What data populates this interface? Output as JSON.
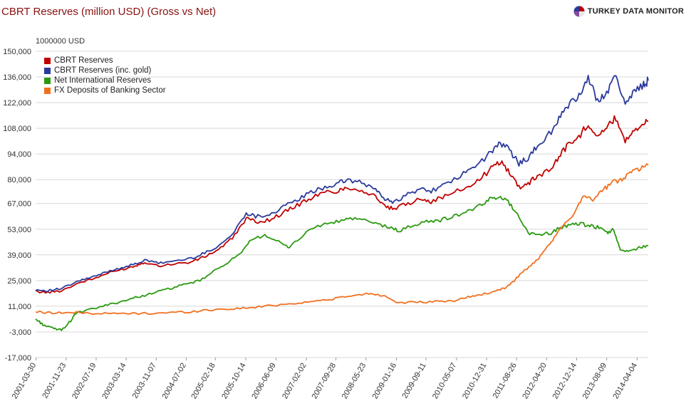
{
  "header": {
    "title": "CBRT Reserves (million USD) (Gross vs Net)",
    "brand": "TURKEY DATA MONITOR"
  },
  "colors": {
    "cbrt": "#c00000",
    "cbrt_gold": "#2a3a9a",
    "nir": "#2a9a10",
    "fx": "#f07020",
    "grid": "#d8d8d8",
    "title": "#8b1010"
  },
  "chart_data": {
    "type": "line",
    "title": "CBRT Reserves (million USD) (Gross vs Net)",
    "ylabel": "1000000 USD",
    "xlabel": "",
    "ylim": [
      -17000,
      150000
    ],
    "yticks": [
      150000,
      136000,
      122000,
      108000,
      94000,
      80000,
      67000,
      53000,
      39000,
      25000,
      11000,
      -3000,
      -17000
    ],
    "ytick_labels": [
      "150,000",
      "136,000",
      "122,000",
      "108,000",
      "94,000",
      "80,000",
      "67,000",
      "53,000",
      "39,000",
      "25,000",
      "11,000",
      "-3,000",
      "-17,000"
    ],
    "xlim": [
      2001.24,
      2014.5
    ],
    "xticks": [
      2001.25,
      2001.9,
      2002.55,
      2003.2,
      2003.85,
      2004.5,
      2005.13,
      2005.79,
      2006.44,
      2007.1,
      2007.74,
      2008.39,
      2009.05,
      2009.69,
      2010.35,
      2011.0,
      2011.65,
      2012.3,
      2012.95,
      2013.6,
      2014.26
    ],
    "xtick_labels": [
      "2001-03-30",
      "2001-11-23",
      "2002-07-19",
      "2003-03-14",
      "2003-11-07",
      "2004-07-02",
      "2005-02-18",
      "2005-10-14",
      "2006-06-09",
      "2007-02-02",
      "2007-09-28",
      "2008-05-23",
      "2009-01-16",
      "2009-09-11",
      "2010-05-07",
      "2010-12-31",
      "2011-08-26",
      "2012-04-20",
      "2012-12-14",
      "2013-08-09",
      "2014-04-04"
    ],
    "legend_position": "top-left",
    "series": [
      {
        "name": "CBRT Reserves",
        "color": "#c00000",
        "x": [
          2001.24,
          2001.5,
          2001.8,
          2002.2,
          2002.5,
          2002.8,
          2003.1,
          2003.4,
          2003.6,
          2003.9,
          2004.2,
          2004.6,
          2004.9,
          2005.2,
          2005.5,
          2005.8,
          2006.0,
          2006.3,
          2006.6,
          2006.9,
          2007.2,
          2007.5,
          2007.8,
          2008.0,
          2008.3,
          2008.6,
          2008.8,
          2009.0,
          2009.3,
          2009.6,
          2009.8,
          2010.1,
          2010.5,
          2010.8,
          2011.1,
          2011.3,
          2011.5,
          2011.7,
          2011.9,
          2012.1,
          2012.4,
          2012.6,
          2012.8,
          2013.0,
          2013.2,
          2013.4,
          2013.6,
          2013.8,
          2014.0,
          2014.2,
          2014.4,
          2014.5
        ],
        "y": [
          19000,
          18500,
          19500,
          24000,
          26000,
          29000,
          31000,
          33000,
          35000,
          33000,
          34000,
          35000,
          38000,
          42000,
          48000,
          59000,
          57000,
          58000,
          62000,
          66000,
          70000,
          73000,
          74000,
          76000,
          74000,
          71000,
          65000,
          64000,
          67000,
          70000,
          68000,
          71000,
          75000,
          79000,
          86000,
          90000,
          84000,
          76000,
          78000,
          82000,
          86000,
          94000,
          100000,
          103000,
          111000,
          104000,
          108000,
          114000,
          101000,
          108000,
          110000,
          112000
        ]
      },
      {
        "name": "CBRT Reserves (inc. gold)",
        "color": "#2a3a9a",
        "x": [
          2001.24,
          2001.5,
          2001.8,
          2002.2,
          2002.5,
          2002.8,
          2003.1,
          2003.4,
          2003.6,
          2003.9,
          2004.2,
          2004.6,
          2004.9,
          2005.2,
          2005.5,
          2005.8,
          2006.0,
          2006.3,
          2006.6,
          2006.9,
          2007.2,
          2007.5,
          2007.8,
          2008.0,
          2008.3,
          2008.6,
          2008.8,
          2009.0,
          2009.3,
          2009.6,
          2009.8,
          2010.1,
          2010.5,
          2010.8,
          2011.1,
          2011.3,
          2011.5,
          2011.7,
          2011.9,
          2012.1,
          2012.4,
          2012.6,
          2012.8,
          2013.0,
          2013.2,
          2013.4,
          2013.6,
          2013.8,
          2014.0,
          2014.2,
          2014.4,
          2014.5
        ],
        "y": [
          20000,
          19500,
          20500,
          25000,
          27000,
          30000,
          32000,
          34000,
          36000,
          34500,
          35500,
          37000,
          40000,
          44000,
          50000,
          62000,
          60000,
          61000,
          65000,
          69000,
          73000,
          76000,
          78000,
          80000,
          78000,
          75000,
          69000,
          68000,
          72000,
          75000,
          74000,
          77000,
          83000,
          88000,
          95000,
          100000,
          96000,
          89000,
          92000,
          98000,
          106000,
          115000,
          121000,
          126000,
          135000,
          123000,
          128000,
          136000,
          122000,
          128000,
          132000,
          134000
        ]
      },
      {
        "name": "Net International Reserves",
        "color": "#2a9a10",
        "x": [
          2001.24,
          2001.4,
          2001.6,
          2001.8,
          2002.0,
          2002.1,
          2002.4,
          2002.7,
          2003.0,
          2003.3,
          2003.6,
          2003.9,
          2004.2,
          2004.5,
          2004.8,
          2005.1,
          2005.4,
          2005.7,
          2005.9,
          2006.2,
          2006.5,
          2006.7,
          2006.9,
          2007.2,
          2007.5,
          2007.8,
          2008.0,
          2008.3,
          2008.6,
          2008.9,
          2009.1,
          2009.4,
          2009.7,
          2010.0,
          2010.3,
          2010.6,
          2010.9,
          2011.1,
          2011.3,
          2011.5,
          2011.7,
          2011.9,
          2012.1,
          2012.4,
          2012.6,
          2012.8,
          2013.0,
          2013.2,
          2013.4,
          2013.6,
          2013.75,
          2013.9,
          2014.1,
          2014.3,
          2014.5
        ],
        "y": [
          4000,
          1000,
          -1000,
          -2000,
          3000,
          7000,
          9000,
          11000,
          13000,
          15000,
          17000,
          19000,
          21000,
          23000,
          25000,
          30000,
          35000,
          40000,
          47000,
          50000,
          46000,
          43000,
          47000,
          53000,
          56000,
          57000,
          59000,
          58000,
          56000,
          54000,
          52000,
          55000,
          57000,
          58000,
          60000,
          63000,
          66000,
          70000,
          71000,
          67000,
          60000,
          51000,
          50000,
          51000,
          54000,
          55000,
          56000,
          55000,
          54000,
          51000,
          53000,
          41000,
          41000,
          43000,
          44000
        ]
      },
      {
        "name": "FX Deposits of Banking Sector",
        "color": "#f07020",
        "x": [
          2001.24,
          2001.5,
          2001.8,
          2002.2,
          2002.6,
          2003.0,
          2003.4,
          2003.8,
          2004.2,
          2004.6,
          2005.0,
          2005.4,
          2005.8,
          2006.2,
          2006.6,
          2007.0,
          2007.4,
          2007.8,
          2008.2,
          2008.5,
          2008.8,
          2009.1,
          2009.5,
          2009.9,
          2010.3,
          2010.6,
          2010.9,
          2011.2,
          2011.4,
          2011.6,
          2011.75,
          2012.0,
          2012.2,
          2012.4,
          2012.6,
          2012.9,
          2013.1,
          2013.3,
          2013.5,
          2013.7,
          2013.9,
          2014.1,
          2014.3,
          2014.5
        ],
        "y": [
          8000,
          7500,
          7500,
          7500,
          7000,
          7000,
          7000,
          7200,
          7600,
          8000,
          9000,
          9500,
          10000,
          11000,
          12000,
          13000,
          14000,
          15500,
          17000,
          18000,
          16500,
          13000,
          13000,
          13500,
          14000,
          16000,
          17500,
          19000,
          21000,
          25000,
          29000,
          34000,
          39000,
          46000,
          53000,
          62000,
          72000,
          69000,
          74000,
          78000,
          80000,
          84000,
          86000,
          88000
        ]
      }
    ]
  }
}
